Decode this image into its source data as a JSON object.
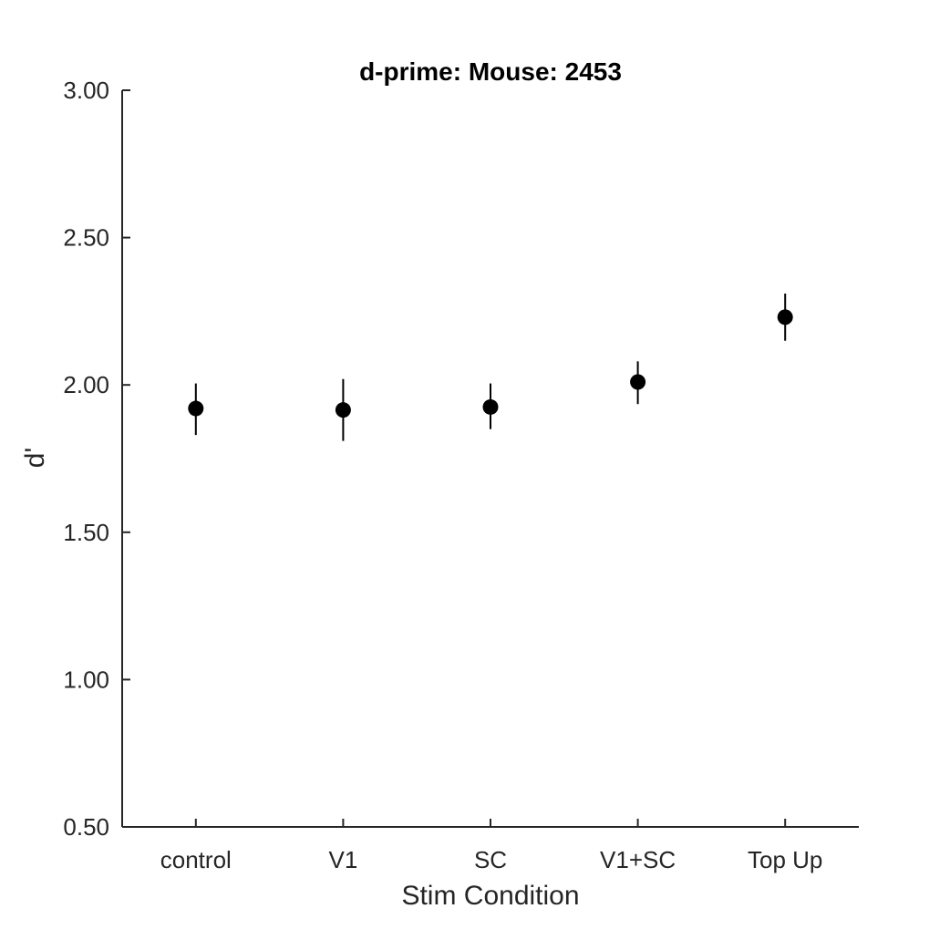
{
  "chart_data": {
    "type": "scatter",
    "title": "d-prime: Mouse: 2453",
    "xlabel": "Stim Condition",
    "ylabel": "d'",
    "categories": [
      "control",
      "V1",
      "SC",
      "V1+SC",
      "Top Up"
    ],
    "values": [
      1.92,
      1.915,
      1.925,
      2.01,
      2.23
    ],
    "error_low": [
      1.83,
      1.81,
      1.85,
      1.935,
      2.15
    ],
    "error_high": [
      2.005,
      2.02,
      2.005,
      2.08,
      2.31
    ],
    "ylim": [
      0.5,
      3.0
    ],
    "yticks": [
      "0.50",
      "1.00",
      "1.50",
      "2.00",
      "2.50",
      "3.00"
    ],
    "grid": false,
    "marker_color": "#000000",
    "axis_color": "#262626"
  }
}
